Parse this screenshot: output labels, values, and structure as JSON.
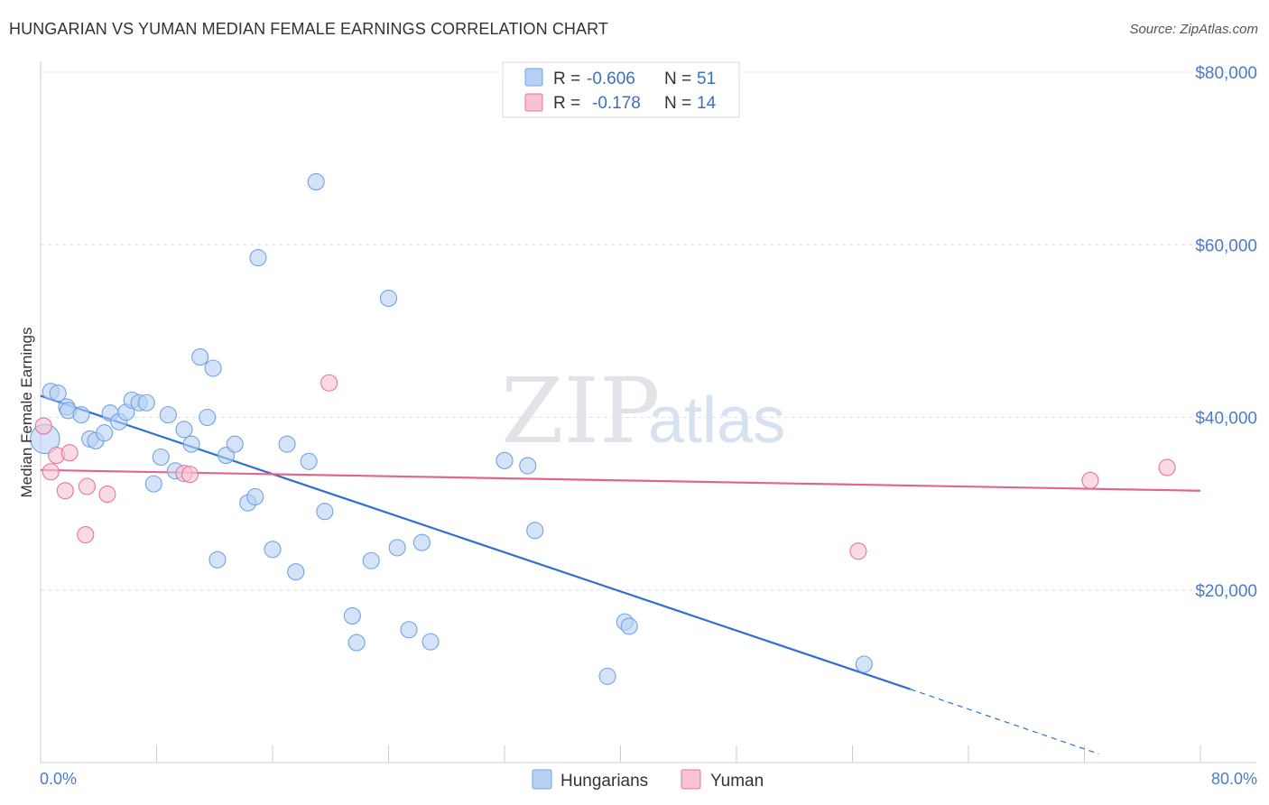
{
  "title": "HUNGARIAN VS YUMAN MEDIAN FEMALE EARNINGS CORRELATION CHART",
  "source": "Source: ZipAtlas.com",
  "watermark": {
    "zip": "ZIP",
    "atlas": "atlas"
  },
  "colors": {
    "blue": "#6fa3e6",
    "blue_fill": "#b8d1f3",
    "blue_line": "#2f6fd0",
    "pink": "#e8739a",
    "pink_fill": "#f7c3d3",
    "pink_line": "#e0668f",
    "grid": "#dde0e6",
    "tick_text": "#4a7cc9"
  },
  "legend": {
    "rows": [
      {
        "r_label": "R = ",
        "r_value": "-0.606",
        "n_label": "N = ",
        "n_value": "51"
      },
      {
        "r_label": "R = ",
        "r_value": "-0.178",
        "n_label": "N = ",
        "n_value": "14"
      }
    ]
  },
  "bottom_legend": [
    "Hungarians",
    "Yuman"
  ],
  "chart_data": {
    "type": "scatter",
    "title": "HUNGARIAN VS YUMAN MEDIAN FEMALE EARNINGS CORRELATION CHART",
    "xlabel": "",
    "ylabel": "Median Female Earnings",
    "xlim": [
      0,
      80
    ],
    "ylim": [
      0,
      80000
    ],
    "x_tick_labels": [
      "0.0%",
      "80.0%"
    ],
    "y_tick_labels": [
      "$20,000",
      "$40,000",
      "$60,000",
      "$80,000"
    ],
    "y_ticks": [
      20000,
      40000,
      60000,
      80000
    ],
    "grid": true,
    "legend_position": "top-center",
    "series": [
      {
        "name": "Hungarians",
        "r": -0.606,
        "n": 51,
        "trend": {
          "x0": 0,
          "y0": 42500,
          "x1": 60,
          "y1": 8500,
          "dash_to_x": 73,
          "dash_to_y": 1000
        },
        "points": [
          [
            0.3,
            37500,
            1.8
          ],
          [
            0.7,
            43000,
            1
          ],
          [
            1.2,
            42800,
            1
          ],
          [
            1.8,
            41200,
            1
          ],
          [
            1.9,
            40800,
            1
          ],
          [
            2.8,
            40300,
            1
          ],
          [
            3.4,
            37500,
            1
          ],
          [
            3.8,
            37300,
            1
          ],
          [
            4.4,
            38200,
            1
          ],
          [
            4.8,
            40500,
            1
          ],
          [
            5.4,
            39500,
            1
          ],
          [
            5.9,
            40600,
            1
          ],
          [
            6.3,
            42000,
            1
          ],
          [
            6.8,
            41700,
            1
          ],
          [
            7.3,
            41700,
            1
          ],
          [
            7.8,
            32300,
            1
          ],
          [
            8.3,
            35400,
            1
          ],
          [
            8.8,
            40300,
            1
          ],
          [
            9.3,
            33800,
            1
          ],
          [
            9.9,
            38600,
            1
          ],
          [
            10.4,
            36900,
            1
          ],
          [
            11.0,
            47000,
            1
          ],
          [
            11.5,
            40000,
            1
          ],
          [
            11.9,
            45700,
            1
          ],
          [
            12.2,
            23500,
            1
          ],
          [
            12.8,
            35600,
            1
          ],
          [
            13.4,
            36900,
            1
          ],
          [
            14.3,
            30100,
            1
          ],
          [
            14.8,
            30800,
            1
          ],
          [
            15.0,
            58500,
            1
          ],
          [
            16.0,
            24700,
            1
          ],
          [
            17.0,
            36900,
            1
          ],
          [
            17.6,
            22100,
            1
          ],
          [
            18.5,
            34900,
            1
          ],
          [
            19.0,
            67300,
            1
          ],
          [
            19.6,
            29100,
            1
          ],
          [
            21.5,
            17000,
            1
          ],
          [
            21.8,
            13900,
            1
          ],
          [
            22.8,
            23400,
            1
          ],
          [
            24.0,
            53800,
            1
          ],
          [
            24.6,
            24900,
            1
          ],
          [
            25.4,
            15400,
            1
          ],
          [
            26.3,
            25500,
            1
          ],
          [
            26.9,
            14000,
            1
          ],
          [
            32.0,
            35000,
            1
          ],
          [
            33.6,
            34400,
            1
          ],
          [
            34.1,
            26900,
            1
          ],
          [
            39.1,
            10000,
            1
          ],
          [
            40.3,
            16300,
            1
          ],
          [
            40.6,
            15800,
            1
          ],
          [
            56.8,
            11400,
            1
          ]
        ]
      },
      {
        "name": "Yuman",
        "r": -0.178,
        "n": 14,
        "trend": {
          "x0": 0,
          "y0": 33900,
          "x1": 80,
          "y1": 31500
        },
        "points": [
          [
            0.2,
            39000,
            1
          ],
          [
            0.7,
            33700,
            1
          ],
          [
            1.1,
            35600,
            1
          ],
          [
            1.7,
            31500,
            1
          ],
          [
            2.0,
            35900,
            1
          ],
          [
            3.1,
            26400,
            1
          ],
          [
            3.2,
            32000,
            1
          ],
          [
            4.6,
            31100,
            1
          ],
          [
            9.9,
            33500,
            1
          ],
          [
            10.3,
            33400,
            1
          ],
          [
            19.9,
            44000,
            1
          ],
          [
            56.4,
            24500,
            1
          ],
          [
            72.4,
            32700,
            1
          ],
          [
            77.7,
            34200,
            1
          ]
        ]
      }
    ]
  }
}
